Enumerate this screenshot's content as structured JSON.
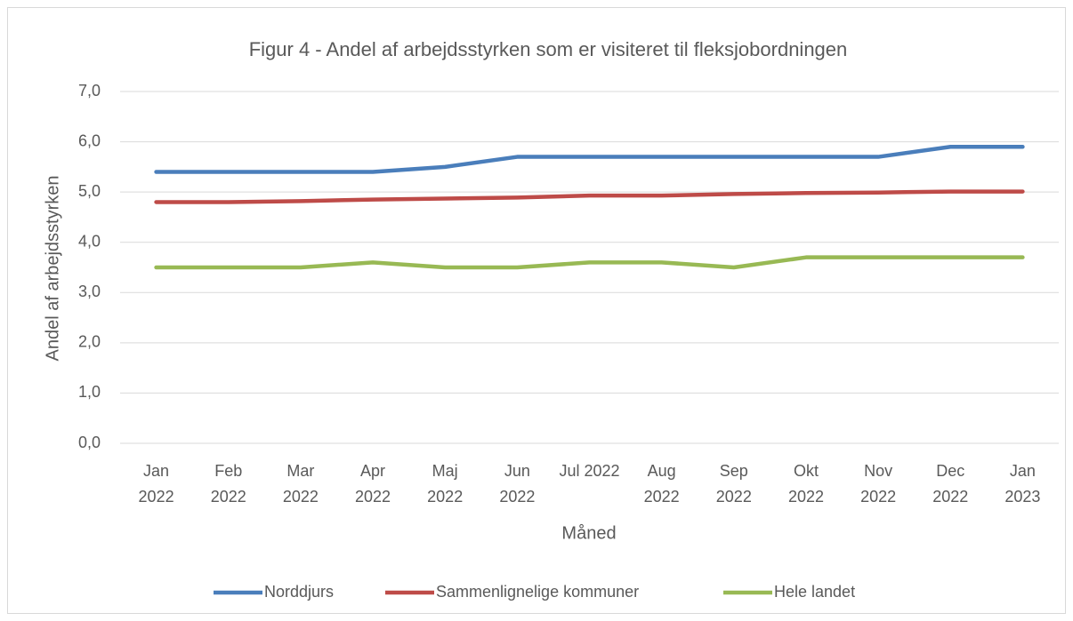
{
  "chart_data": {
    "type": "line",
    "title": "Figur 4 - Andel af arbejdsstyrken som er visiteret til fleksjobordningen",
    "x_label": "Måned",
    "y_label": "Andel af arbejdsstyrken",
    "categories": [
      [
        "Jan",
        "2022"
      ],
      [
        "Feb",
        "2022"
      ],
      [
        "Mar",
        "2022"
      ],
      [
        "Apr",
        "2022"
      ],
      [
        "Maj",
        "2022"
      ],
      [
        "Jun",
        "2022"
      ],
      [
        "Jul 2022"
      ],
      [
        "Aug",
        "2022"
      ],
      [
        "Sep",
        "2022"
      ],
      [
        "Okt",
        "2022"
      ],
      [
        "Nov",
        "2022"
      ],
      [
        "Dec",
        "2022"
      ],
      [
        "Jan",
        "2023"
      ]
    ],
    "series": [
      {
        "name": "Norddjurs",
        "color": "#4a7ebb",
        "values": [
          5.4,
          5.4,
          5.4,
          5.4,
          5.5,
          5.7,
          5.7,
          5.7,
          5.7,
          5.7,
          5.7,
          5.9,
          5.9
        ]
      },
      {
        "name": "Sammenlignelige kommuner",
        "color": "#be4b48",
        "values": [
          4.8,
          4.8,
          4.82,
          4.85,
          4.87,
          4.89,
          4.93,
          4.93,
          4.96,
          4.98,
          4.99,
          5.01,
          5.01
        ]
      },
      {
        "name": "Hele landet",
        "color": "#98b954",
        "values": [
          3.5,
          3.5,
          3.5,
          3.6,
          3.5,
          3.5,
          3.6,
          3.6,
          3.5,
          3.7,
          3.7,
          3.7,
          3.7
        ]
      }
    ],
    "ylim": [
      0,
      7
    ],
    "yticks": [
      {
        "value": 0,
        "label": "0,0"
      },
      {
        "value": 1,
        "label": "1,0"
      },
      {
        "value": 2,
        "label": "2,0"
      },
      {
        "value": 3,
        "label": "3,0"
      },
      {
        "value": 4,
        "label": "4,0"
      },
      {
        "value": 5,
        "label": "5,0"
      },
      {
        "value": 6,
        "label": "6,0"
      },
      {
        "value": 7,
        "label": "7,0"
      }
    ],
    "grid": true,
    "legend": "bottom"
  }
}
